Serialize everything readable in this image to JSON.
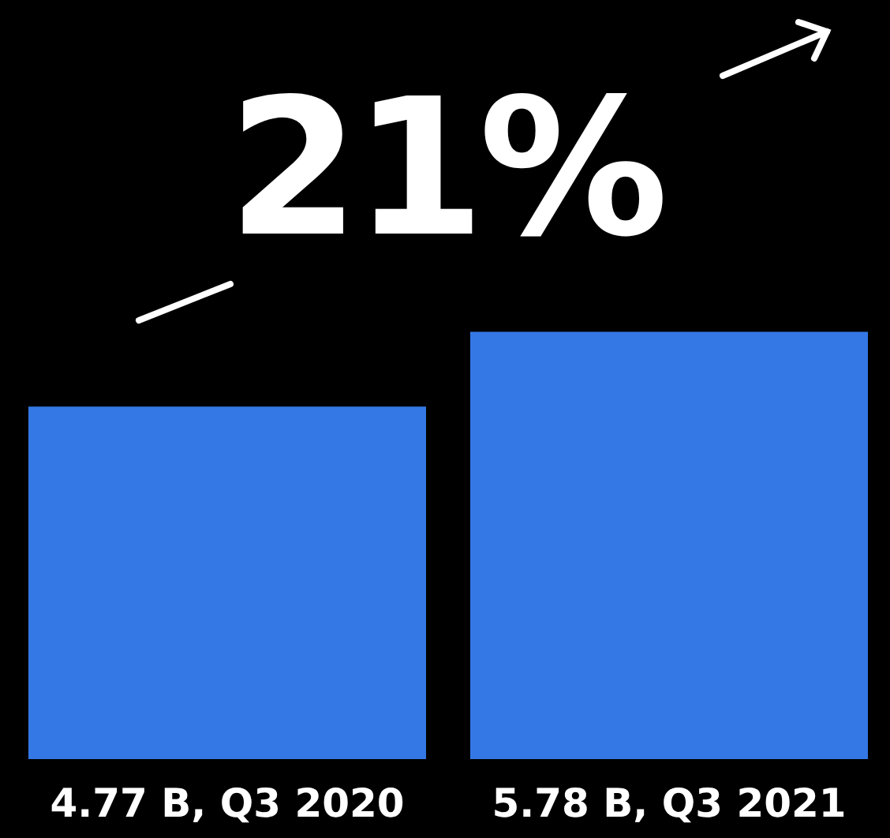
{
  "chart_data": {
    "type": "bar",
    "categories": [
      "Q3 2020",
      "Q3 2021"
    ],
    "values": [
      4.77,
      5.78
    ],
    "value_labels": [
      "4.77 B,",
      "5.78 B,"
    ],
    "color": "#3478e5",
    "grid": false,
    "legend": false,
    "annotations": [
      "21%"
    ]
  }
}
